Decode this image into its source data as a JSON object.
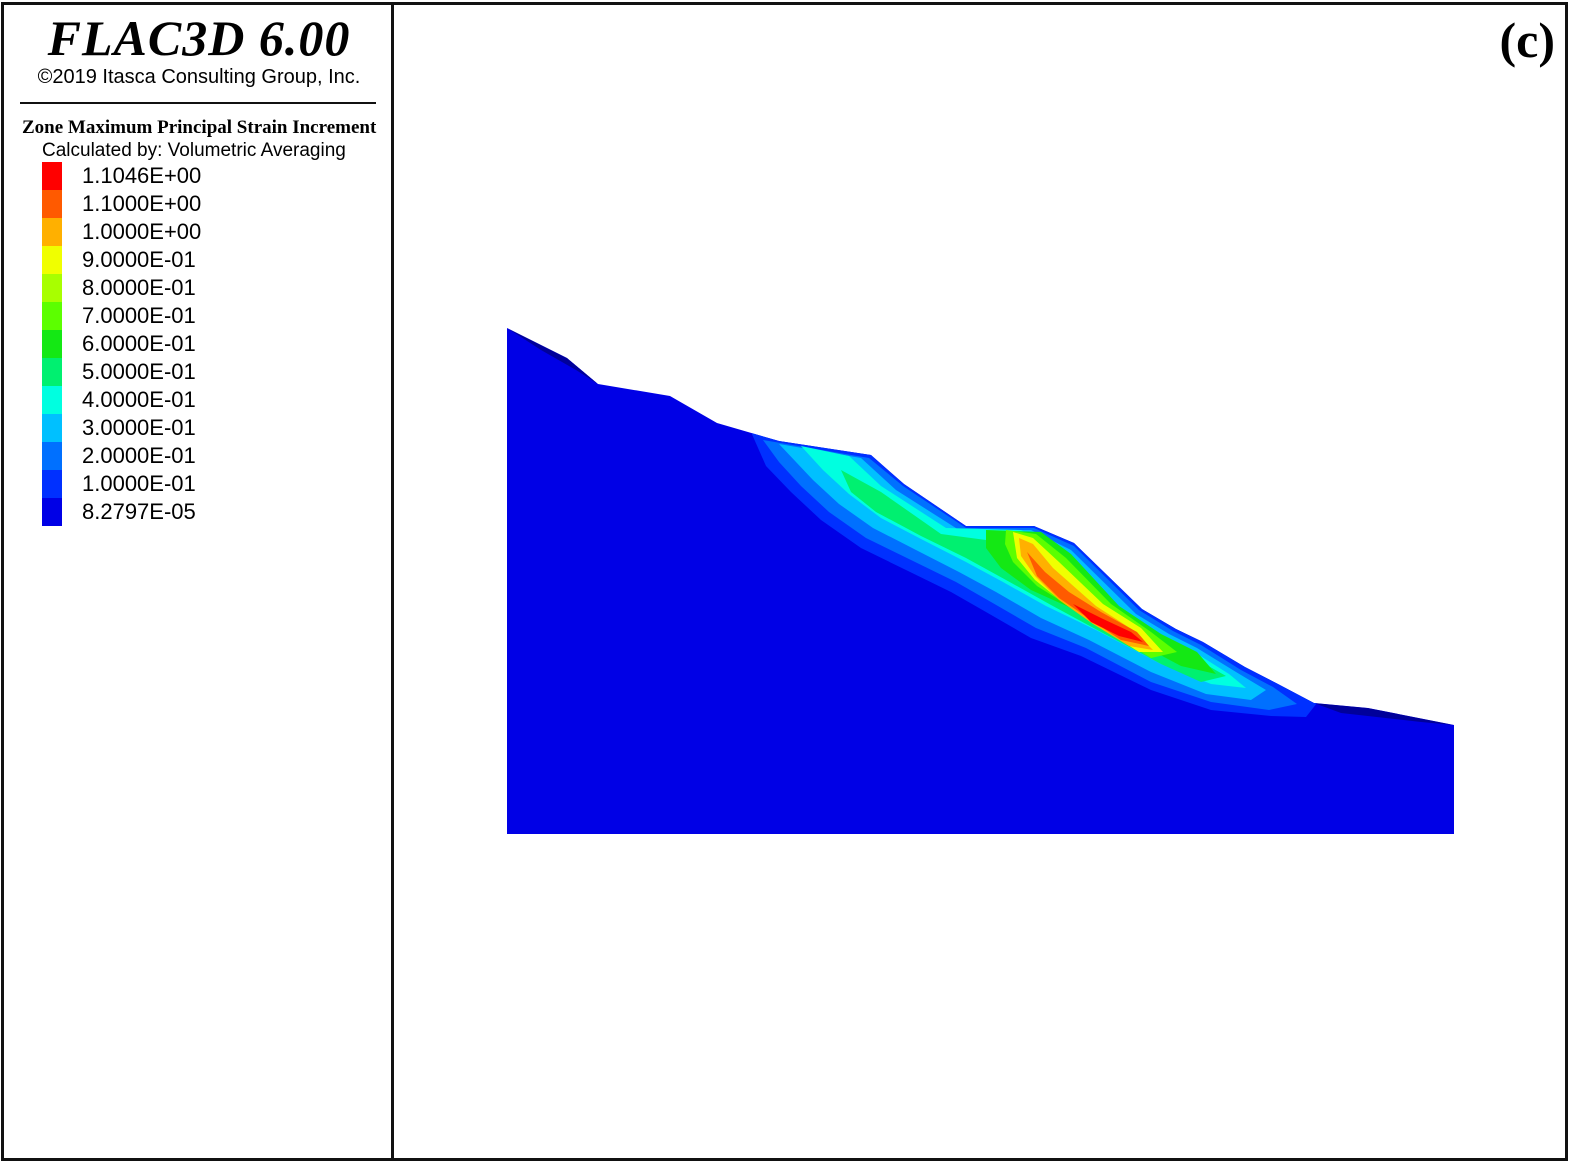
{
  "header": {
    "app_title": "FLAC3D 6.00",
    "copyright": "©2019 Itasca Consulting Group, Inc."
  },
  "legend": {
    "heading": "Zone Maximum Principal Strain Increment",
    "subheading": "Calculated by: Volumetric Averaging",
    "entries": [
      {
        "value": "1.1046E+00",
        "color": "#ff0000"
      },
      {
        "value": "1.1000E+00",
        "color": "#ff5a00"
      },
      {
        "value": "1.0000E+00",
        "color": "#ffb000"
      },
      {
        "value": "9.0000E-01",
        "color": "#f0ff00"
      },
      {
        "value": "8.0000E-01",
        "color": "#a8ff00"
      },
      {
        "value": "7.0000E-01",
        "color": "#5cff00"
      },
      {
        "value": "6.0000E-01",
        "color": "#14e814"
      },
      {
        "value": "5.0000E-01",
        "color": "#00f070"
      },
      {
        "value": "4.0000E-01",
        "color": "#00ffe0"
      },
      {
        "value": "3.0000E-01",
        "color": "#00c0ff"
      },
      {
        "value": "2.0000E-01",
        "color": "#0070ff"
      },
      {
        "value": "1.0000E-01",
        "color": "#0030ff"
      },
      {
        "value": "8.2797E-05",
        "color": "#0000e6"
      }
    ]
  },
  "view": {
    "panel_label": "(c)"
  }
}
